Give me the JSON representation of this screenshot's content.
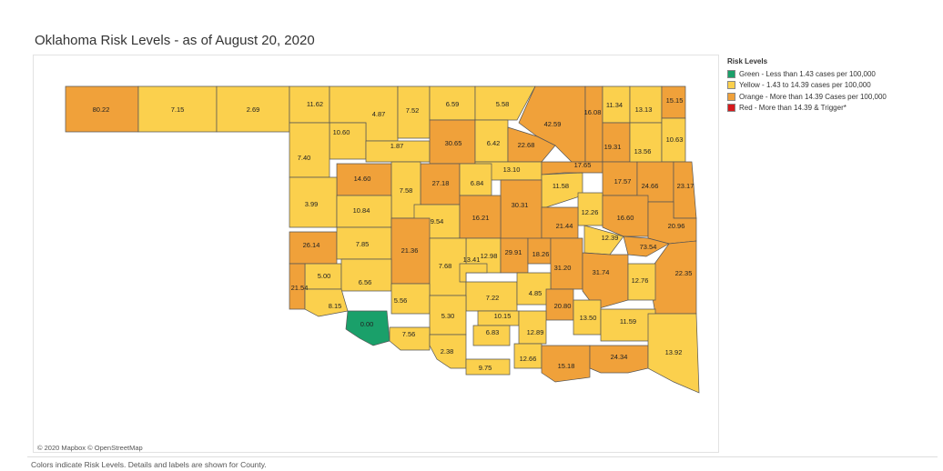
{
  "title": "Oklahoma Risk Levels - as of August 20, 2020",
  "credits": "© 2020 Mapbox © OpenStreetMap",
  "footer": "Colors indicate Risk Levels.  Details and labels are shown for County.",
  "legend": {
    "title": "Risk Levels",
    "items": [
      {
        "label": "Green - Less than 1.43 cases per 100,000",
        "color": "#1aa06a"
      },
      {
        "label": "Yellow - 1.43 to 14.39 cases per 100,000",
        "color": "#fbd04d"
      },
      {
        "label": "Orange - More than 14.39 Cases per 100,000",
        "color": "#f0a13a"
      },
      {
        "label": "Red - More than 14.39 & Trigger*",
        "color": "#d7191c"
      }
    ]
  },
  "colors": {
    "green": "#1aa06a",
    "yellow": "#fbd04d",
    "orange": "#f0a13a",
    "red": "#d7191c"
  },
  "counties": [
    {
      "value": "80.22",
      "level": "orange"
    },
    {
      "value": "7.15",
      "level": "yellow"
    },
    {
      "value": "2.69",
      "level": "yellow"
    },
    {
      "value": "11.62",
      "level": "yellow"
    },
    {
      "value": "4.87",
      "level": "yellow"
    },
    {
      "value": "7.52",
      "level": "yellow"
    },
    {
      "value": "6.59",
      "level": "yellow"
    },
    {
      "value": "5.58",
      "level": "yellow"
    },
    {
      "value": "42.59",
      "level": "orange"
    },
    {
      "value": "16.08",
      "level": "orange"
    },
    {
      "value": "11.34",
      "level": "yellow"
    },
    {
      "value": "13.13",
      "level": "yellow"
    },
    {
      "value": "15.15",
      "level": "orange"
    },
    {
      "value": "10.60",
      "level": "yellow"
    },
    {
      "value": "1.87",
      "level": "yellow"
    },
    {
      "value": "30.65",
      "level": "orange"
    },
    {
      "value": "6.42",
      "level": "yellow"
    },
    {
      "value": "22.68",
      "level": "orange"
    },
    {
      "value": "19.31",
      "level": "orange"
    },
    {
      "value": "13.56",
      "level": "yellow"
    },
    {
      "value": "10.63",
      "level": "yellow"
    },
    {
      "value": "7.40",
      "level": "yellow"
    },
    {
      "value": "13.10",
      "level": "yellow"
    },
    {
      "value": "17.65",
      "level": "orange"
    },
    {
      "value": "14.60",
      "level": "orange"
    },
    {
      "value": "27.18",
      "level": "orange"
    },
    {
      "value": "6.84",
      "level": "yellow"
    },
    {
      "value": "7.58",
      "level": "yellow"
    },
    {
      "value": "11.58",
      "level": "yellow"
    },
    {
      "value": "17.57",
      "level": "orange"
    },
    {
      "value": "24.66",
      "level": "orange"
    },
    {
      "value": "23.17",
      "level": "orange"
    },
    {
      "value": "3.99",
      "level": "yellow"
    },
    {
      "value": "10.84",
      "level": "yellow"
    },
    {
      "value": "30.31",
      "level": "orange"
    },
    {
      "value": "9.54",
      "level": "yellow"
    },
    {
      "value": "16.21",
      "level": "orange"
    },
    {
      "value": "12.26",
      "level": "yellow"
    },
    {
      "value": "21.44",
      "level": "orange"
    },
    {
      "value": "16.60",
      "level": "orange"
    },
    {
      "value": "20.96",
      "level": "orange"
    },
    {
      "value": "26.14",
      "level": "orange"
    },
    {
      "value": "7.85",
      "level": "yellow"
    },
    {
      "value": "21.36",
      "level": "orange"
    },
    {
      "value": "12.98",
      "level": "yellow"
    },
    {
      "value": "29.91",
      "level": "orange"
    },
    {
      "value": "18.26",
      "level": "orange"
    },
    {
      "value": "12.39",
      "level": "yellow"
    },
    {
      "value": "73.54",
      "level": "orange"
    },
    {
      "value": "7.68",
      "level": "yellow"
    },
    {
      "value": "13.41",
      "level": "yellow"
    },
    {
      "value": "5.00",
      "level": "yellow"
    },
    {
      "value": "31.20",
      "level": "orange"
    },
    {
      "value": "31.74",
      "level": "orange"
    },
    {
      "value": "22.35",
      "level": "orange"
    },
    {
      "value": "21.54",
      "level": "orange"
    },
    {
      "value": "6.56",
      "level": "yellow"
    },
    {
      "value": "8.15",
      "level": "yellow"
    },
    {
      "value": "5.56",
      "level": "yellow"
    },
    {
      "value": "7.22",
      "level": "yellow"
    },
    {
      "value": "4.85",
      "level": "yellow"
    },
    {
      "value": "12.76",
      "level": "yellow"
    },
    {
      "value": "20.80",
      "level": "orange"
    },
    {
      "value": "5.30",
      "level": "yellow"
    },
    {
      "value": "10.15",
      "level": "yellow"
    },
    {
      "value": "13.50",
      "level": "yellow"
    },
    {
      "value": "11.59",
      "level": "yellow"
    },
    {
      "value": "0.00",
      "level": "green"
    },
    {
      "value": "6.83",
      "level": "yellow"
    },
    {
      "value": "12.89",
      "level": "yellow"
    },
    {
      "value": "7.56",
      "level": "yellow"
    },
    {
      "value": "2.38",
      "level": "yellow"
    },
    {
      "value": "12.66",
      "level": "yellow"
    },
    {
      "value": "15.18",
      "level": "orange"
    },
    {
      "value": "24.34",
      "level": "orange"
    },
    {
      "value": "13.92",
      "level": "yellow"
    },
    {
      "value": "9.75",
      "level": "yellow"
    }
  ]
}
